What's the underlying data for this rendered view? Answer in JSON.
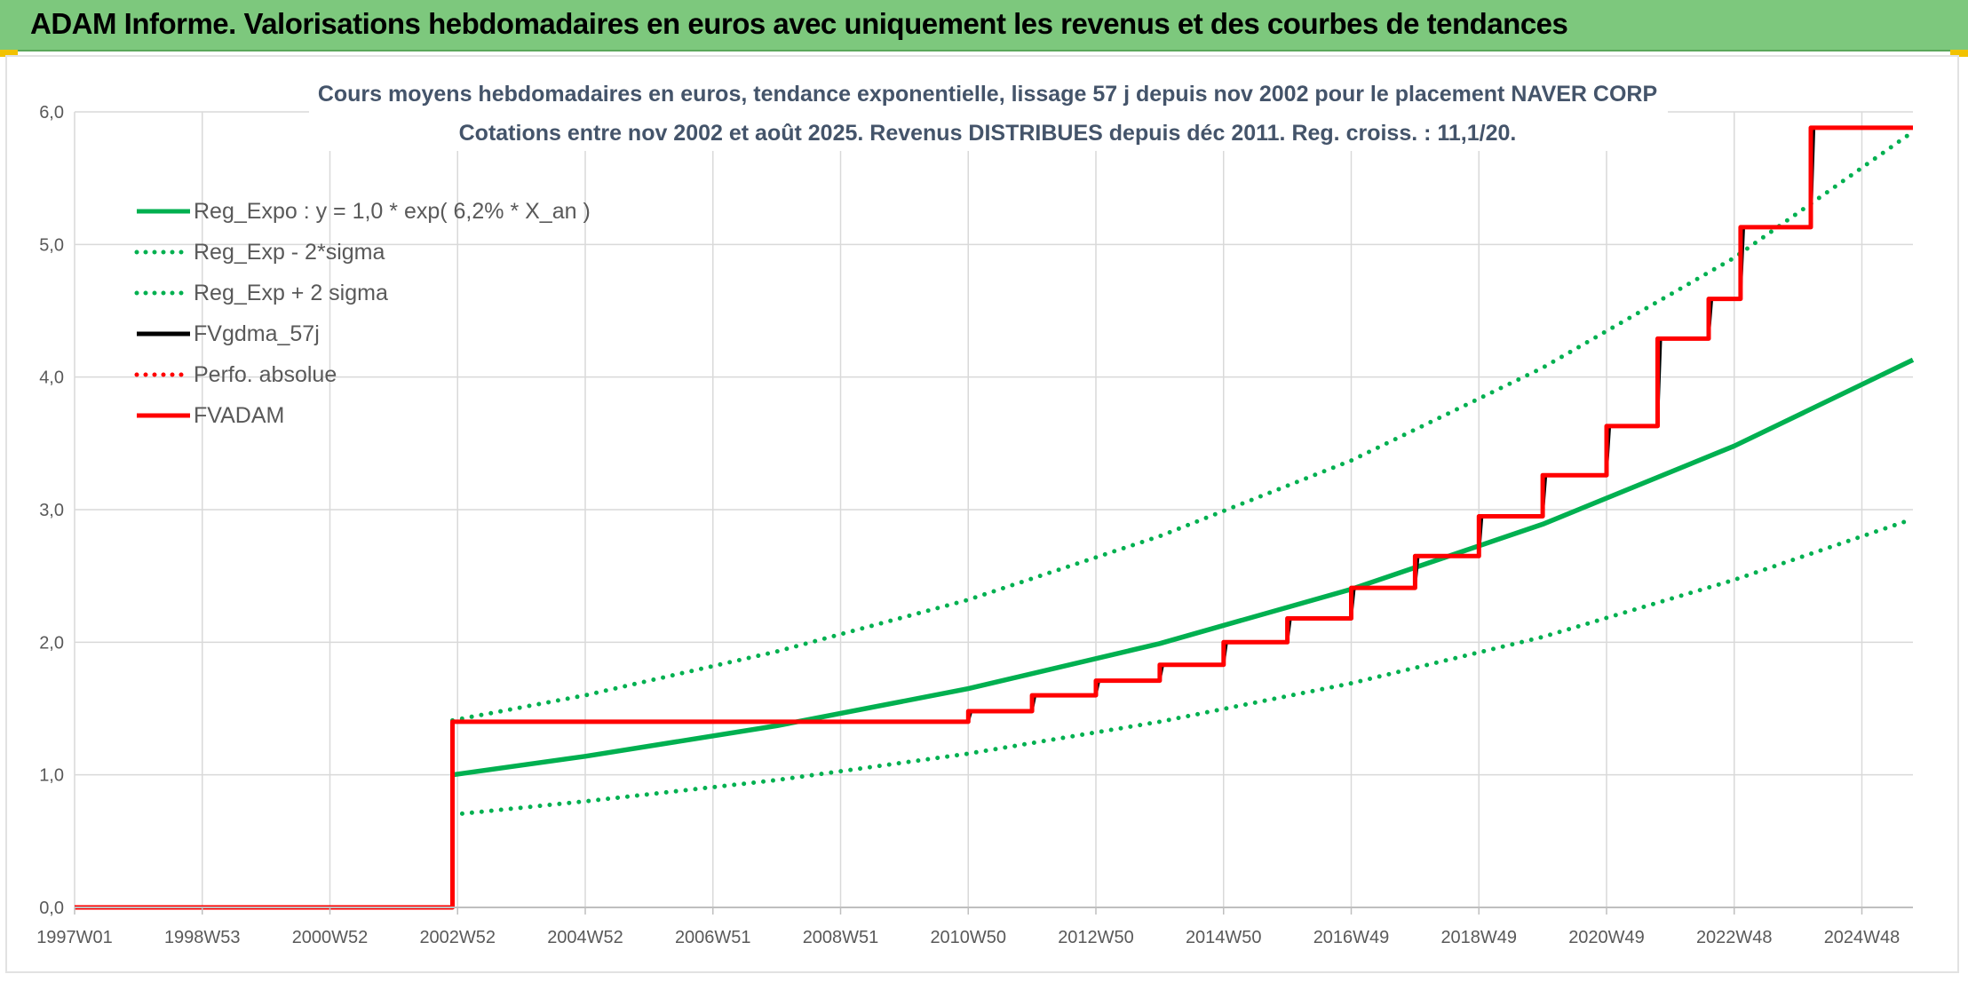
{
  "page": {
    "banner_title": "ADAM Informe. Valorisations hebdomadaires en euros avec uniquement les revenus et des courbes de tendances"
  },
  "colors": {
    "banner": "#7dc87d",
    "reg_expo": "#00b050",
    "fvgdma": "#000000",
    "fvadam": "#ff0000",
    "grid": "#d9d9d9"
  },
  "chart_data": {
    "type": "line",
    "title": "Cours moyens hebdomadaires en euros, tendance exponentielle, lissage 57 j depuis nov 2002 pour le placement NAVER CORP",
    "subtitle": "Cotations entre nov 2002 et août 2025. Revenus DISTRIBUES depuis déc 2011. Reg. croiss. : 11,1/20.",
    "xlabel": "",
    "ylabel": "",
    "x_range": [
      1997.0,
      2025.8
    ],
    "ylim": [
      0,
      6
    ],
    "y_ticks": [
      0,
      1,
      2,
      3,
      4,
      5,
      6
    ],
    "y_tick_labels": [
      "0,0",
      "1,0",
      "2,0",
      "3,0",
      "4,0",
      "5,0",
      "6,0"
    ],
    "x_ticks": [
      {
        "x": 1997.0,
        "label": "1997W01"
      },
      {
        "x": 1999.0,
        "label": "1998W53"
      },
      {
        "x": 2001.0,
        "label": "2000W52"
      },
      {
        "x": 2003.0,
        "label": "2002W52"
      },
      {
        "x": 2005.0,
        "label": "2004W52"
      },
      {
        "x": 2007.0,
        "label": "2006W51"
      },
      {
        "x": 2009.0,
        "label": "2008W51"
      },
      {
        "x": 2011.0,
        "label": "2010W50"
      },
      {
        "x": 2013.0,
        "label": "2012W50"
      },
      {
        "x": 2015.0,
        "label": "2014W50"
      },
      {
        "x": 2017.0,
        "label": "2016W49"
      },
      {
        "x": 2019.0,
        "label": "2018W49"
      },
      {
        "x": 2021.0,
        "label": "2020W49"
      },
      {
        "x": 2023.0,
        "label": "2022W48"
      },
      {
        "x": 2025.0,
        "label": "2024W48"
      }
    ],
    "grid": true,
    "legend_position": "top-left",
    "series": [
      {
        "name": "Reg_Expo : y = 1,0 * exp( 6,2% *  X_an )",
        "style": "solid",
        "color": "#00b050",
        "points": [
          [
            2002.92,
            1.0
          ],
          [
            2005,
            1.14
          ],
          [
            2008,
            1.37
          ],
          [
            2011,
            1.65
          ],
          [
            2014,
            1.99
          ],
          [
            2017,
            2.4
          ],
          [
            2020,
            2.89
          ],
          [
            2023,
            3.48
          ],
          [
            2025.8,
            4.13
          ]
        ]
      },
      {
        "name": "Reg_Exp - 2*sigma",
        "style": "dotted",
        "color": "#00b050",
        "points": [
          [
            2002.92,
            0.7
          ],
          [
            2005,
            0.8
          ],
          [
            2008,
            0.96
          ],
          [
            2011,
            1.16
          ],
          [
            2014,
            1.4
          ],
          [
            2017,
            1.69
          ],
          [
            2020,
            2.04
          ],
          [
            2023,
            2.47
          ],
          [
            2025.8,
            2.93
          ]
        ]
      },
      {
        "name": "Reg_Exp + 2 sigma",
        "style": "dotted",
        "color": "#00b050",
        "points": [
          [
            2002.92,
            1.41
          ],
          [
            2005,
            1.6
          ],
          [
            2008,
            1.93
          ],
          [
            2011,
            2.32
          ],
          [
            2014,
            2.8
          ],
          [
            2017,
            3.37
          ],
          [
            2020,
            4.07
          ],
          [
            2023,
            4.9
          ],
          [
            2025.8,
            5.85
          ]
        ]
      },
      {
        "name": "FVgdma_57j",
        "style": "solid",
        "color": "#000000",
        "points": [
          [
            2002.92,
            1.4
          ],
          [
            2011.0,
            1.4
          ],
          [
            2011.05,
            1.48
          ],
          [
            2012.0,
            1.48
          ],
          [
            2012.05,
            1.6
          ],
          [
            2013.0,
            1.6
          ],
          [
            2013.05,
            1.71
          ],
          [
            2014.0,
            1.71
          ],
          [
            2014.05,
            1.83
          ],
          [
            2015.0,
            1.83
          ],
          [
            2015.05,
            2.0
          ],
          [
            2016.0,
            2.0
          ],
          [
            2016.05,
            2.18
          ],
          [
            2017.0,
            2.18
          ],
          [
            2017.05,
            2.41
          ],
          [
            2018.0,
            2.41
          ],
          [
            2018.05,
            2.65
          ],
          [
            2019.0,
            2.65
          ],
          [
            2019.05,
            2.95
          ],
          [
            2020.0,
            2.95
          ],
          [
            2020.05,
            3.26
          ],
          [
            2021.0,
            3.26
          ],
          [
            2021.05,
            3.63
          ],
          [
            2021.8,
            3.63
          ],
          [
            2021.85,
            4.29
          ],
          [
            2022.6,
            4.29
          ],
          [
            2022.65,
            4.59
          ],
          [
            2023.1,
            4.59
          ],
          [
            2023.15,
            5.13
          ],
          [
            2024.2,
            5.13
          ],
          [
            2024.25,
            5.88
          ],
          [
            2025.8,
            5.88
          ]
        ]
      },
      {
        "name": "Perfo. absolue",
        "style": "dotted",
        "color": "#ff0000",
        "points": []
      },
      {
        "name": "FVADAM",
        "style": "solid",
        "color": "#ff0000",
        "points": [
          [
            1997.0,
            0.0
          ],
          [
            2002.92,
            0.0
          ],
          [
            2002.92,
            1.4
          ],
          [
            2011.0,
            1.4
          ],
          [
            2011.0,
            1.48
          ],
          [
            2012.0,
            1.48
          ],
          [
            2012.0,
            1.6
          ],
          [
            2013.0,
            1.6
          ],
          [
            2013.0,
            1.71
          ],
          [
            2014.0,
            1.71
          ],
          [
            2014.0,
            1.83
          ],
          [
            2015.0,
            1.83
          ],
          [
            2015.0,
            2.0
          ],
          [
            2016.0,
            2.0
          ],
          [
            2016.0,
            2.18
          ],
          [
            2017.0,
            2.18
          ],
          [
            2017.0,
            2.41
          ],
          [
            2018.0,
            2.41
          ],
          [
            2018.0,
            2.65
          ],
          [
            2019.0,
            2.65
          ],
          [
            2019.0,
            2.95
          ],
          [
            2020.0,
            2.95
          ],
          [
            2020.0,
            3.26
          ],
          [
            2021.0,
            3.26
          ],
          [
            2021.0,
            3.63
          ],
          [
            2021.8,
            3.63
          ],
          [
            2021.8,
            4.29
          ],
          [
            2022.6,
            4.29
          ],
          [
            2022.6,
            4.59
          ],
          [
            2023.1,
            4.59
          ],
          [
            2023.1,
            5.13
          ],
          [
            2024.2,
            5.13
          ],
          [
            2024.2,
            5.88
          ],
          [
            2025.8,
            5.88
          ]
        ]
      }
    ]
  }
}
